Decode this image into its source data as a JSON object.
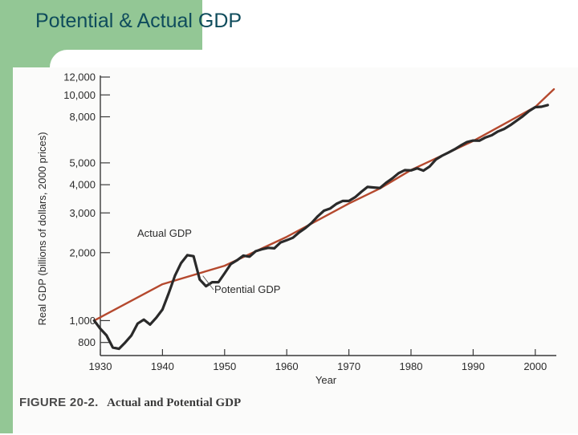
{
  "slide": {
    "title": "Potential & Actual GDP"
  },
  "figure": {
    "number": "FIGURE 20-2.",
    "caption": "Actual and Potential GDP"
  },
  "colors": {
    "background_band": "#93c795",
    "title": "#0f4c5c",
    "actual_line": "#2a2a2a",
    "potential_line": "#b5492e"
  },
  "chart_data": {
    "type": "line",
    "xlabel": "Year",
    "ylabel": "Real GDP (billions of dollars, 2000 prices)",
    "y_scale": "log",
    "xlim": [
      1930,
      2003
    ],
    "ylim": [
      700,
      12000
    ],
    "x_ticks": [
      "1930",
      "1940",
      "1950",
      "1960",
      "1970",
      "1980",
      "1990",
      "2000"
    ],
    "y_ticks": [
      "800",
      "1,000",
      "2,000",
      "3,000",
      "4,000",
      "5,000",
      "8,000",
      "10,000",
      "12,000"
    ],
    "grid": false,
    "annotations": [
      "Actual GDP",
      "Potential GDP"
    ],
    "series": [
      {
        "name": "Actual GDP",
        "x": [
          1929,
          1930,
          1931,
          1932,
          1933,
          1934,
          1935,
          1936,
          1937,
          1938,
          1939,
          1940,
          1941,
          1942,
          1943,
          1944,
          1945,
          1946,
          1947,
          1948,
          1949,
          1950,
          1951,
          1952,
          1953,
          1954,
          1955,
          1956,
          1957,
          1958,
          1959,
          1960,
          1961,
          1962,
          1963,
          1964,
          1965,
          1966,
          1967,
          1968,
          1969,
          1970,
          1971,
          1972,
          1973,
          1974,
          1975,
          1976,
          1977,
          1978,
          1979,
          1980,
          1981,
          1982,
          1983,
          1984,
          1985,
          1986,
          1987,
          1988,
          1989,
          1990,
          1991,
          1992,
          1993,
          1994,
          1995,
          1996,
          1997,
          1998,
          1999,
          2000,
          2001,
          2002
        ],
        "y": [
          1000,
          920,
          860,
          760,
          750,
          800,
          860,
          970,
          1010,
          960,
          1030,
          1120,
          1320,
          1580,
          1800,
          1950,
          1930,
          1520,
          1420,
          1480,
          1480,
          1620,
          1780,
          1850,
          1940,
          1920,
          2030,
          2070,
          2100,
          2090,
          2220,
          2270,
          2330,
          2460,
          2570,
          2710,
          2900,
          3070,
          3140,
          3290,
          3390,
          3390,
          3520,
          3720,
          3910,
          3890,
          3870,
          4080,
          4270,
          4500,
          4640,
          4630,
          4730,
          4620,
          4820,
          5170,
          5380,
          5550,
          5740,
          5970,
          6180,
          6280,
          6270,
          6480,
          6630,
          6890,
          7070,
          7350,
          7690,
          8050,
          8480,
          8830,
          8860,
          9020
        ]
      },
      {
        "name": "Potential GDP",
        "x": [
          1929,
          1940,
          1950,
          1960,
          1970,
          1975,
          1980,
          1990,
          2000,
          2003
        ],
        "y": [
          1000,
          1450,
          1750,
          2350,
          3300,
          3850,
          4650,
          6250,
          8850,
          10600
        ]
      }
    ]
  }
}
